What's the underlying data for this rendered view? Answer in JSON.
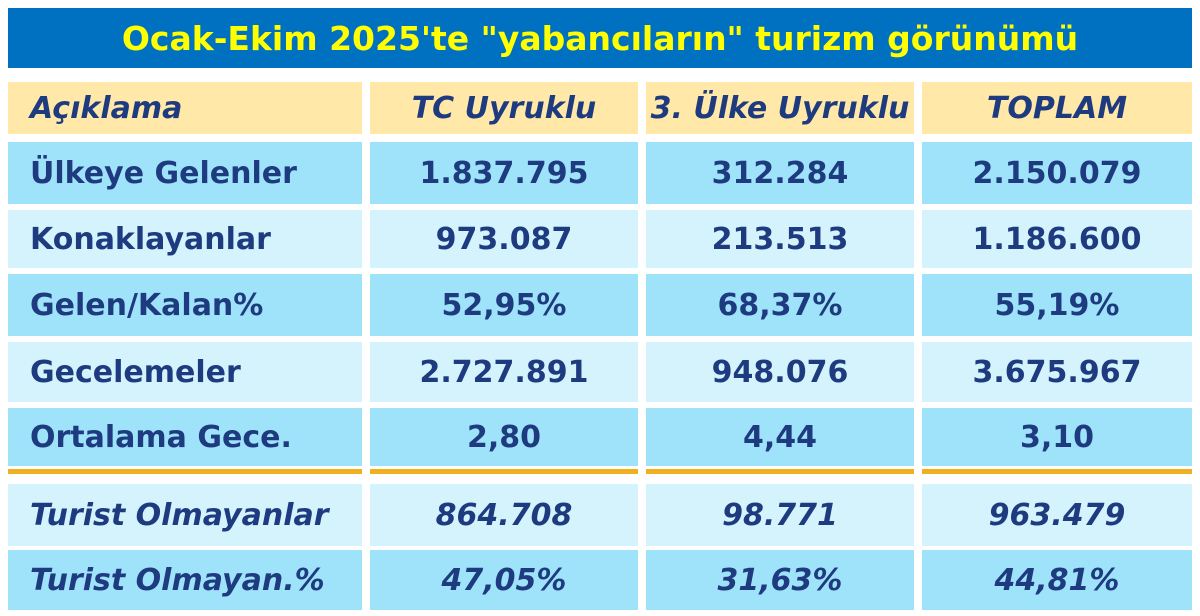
{
  "title": "Ocak-Ekim 2025'te \"yabancıların\" turizm görünümü",
  "table": {
    "header": [
      "Açıklama",
      "TC Uyruklu",
      "3. Ülke Uyruklu",
      "TOPLAM"
    ],
    "rows": [
      [
        "Ülkeye Gelenler",
        "1.837.795",
        "312.284",
        "2.150.079"
      ],
      [
        "Konaklayanlar",
        "973.087",
        "213.513",
        "1.186.600"
      ],
      [
        "Gelen/Kalan%",
        "52,95%",
        "68,37%",
        "55,19%"
      ],
      [
        "Gecelemeler",
        "2.727.891",
        "948.076",
        "3.675.967"
      ],
      [
        "Ortalama Gece.",
        "2,80",
        "4,44",
        "3,10"
      ],
      [
        "Turist Olmayanlar",
        "864.708",
        "98.771",
        "963.479"
      ],
      [
        "Turist Olmayan.%",
        "47,05%",
        "31,63%",
        "44,81%"
      ]
    ]
  }
}
